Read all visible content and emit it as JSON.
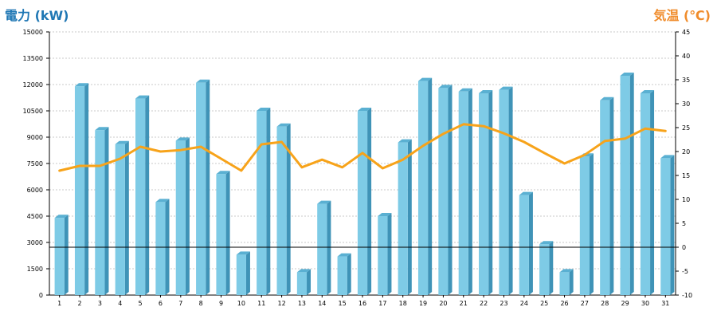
{
  "chart_data": {
    "type": "bar",
    "left_axis_label": "電力 (kW)",
    "right_axis_label": "気温 (℃)",
    "categories": [
      "1",
      "2",
      "3",
      "4",
      "5",
      "6",
      "7",
      "8",
      "9",
      "10",
      "11",
      "12",
      "13",
      "14",
      "15",
      "16",
      "17",
      "18",
      "19",
      "20",
      "21",
      "22",
      "23",
      "24",
      "25",
      "26",
      "27",
      "28",
      "29",
      "30",
      "31"
    ],
    "series": [
      {
        "axis": "left",
        "kind": "bar",
        "color": "#7ecbe6",
        "values": [
          4400,
          11900,
          9400,
          8600,
          11200,
          5300,
          8800,
          12100,
          6900,
          2300,
          10500,
          9600,
          1300,
          5200,
          2200,
          10500,
          4500,
          8700,
          12200,
          11800,
          11600,
          11500,
          11700,
          5700,
          2900,
          1300,
          7900,
          11100,
          12500,
          11500,
          7800
        ]
      },
      {
        "axis": "right",
        "kind": "line",
        "color": "#f7a31a",
        "values": [
          16,
          17,
          17,
          18.5,
          21,
          20,
          20.3,
          21,
          18.5,
          16,
          21.5,
          22,
          16.7,
          18.3,
          16.7,
          19.7,
          16.5,
          18.3,
          21.2,
          23.7,
          25.7,
          25.3,
          23.8,
          22,
          19.7,
          17.5,
          19.3,
          22.2,
          22.7,
          24.8,
          24.3
        ]
      }
    ],
    "left_axis": {
      "min": 0,
      "max": 15000,
      "ticks": [
        "0",
        "1500",
        "3000",
        "4500",
        "6000",
        "7500",
        "9000",
        "10500",
        "12000",
        "13500",
        "15000"
      ]
    },
    "right_axis": {
      "min": -10,
      "max": 45,
      "ticks": [
        "-10",
        "-5",
        "0",
        "5",
        "10",
        "15",
        "20",
        "25",
        "30",
        "35",
        "40",
        "45"
      ]
    },
    "reference_line_right_value": 0,
    "grid": true
  }
}
